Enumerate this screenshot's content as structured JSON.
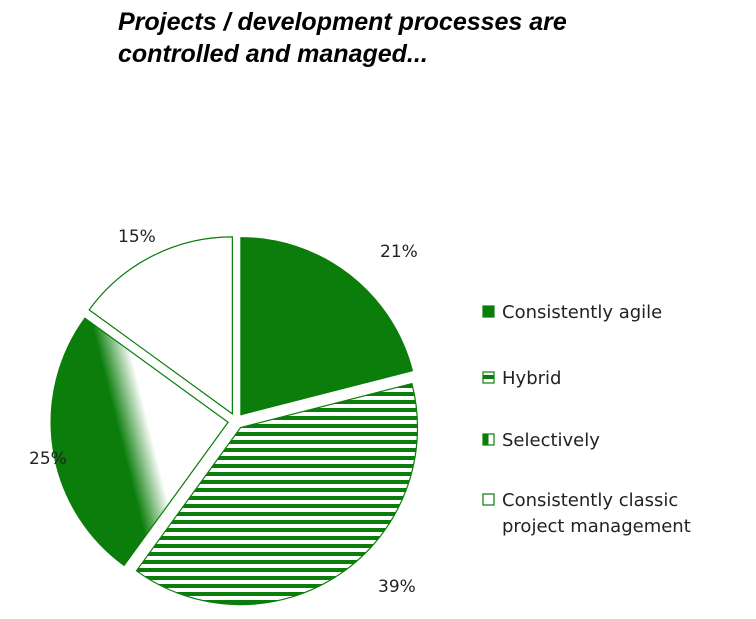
{
  "title": {
    "line1": "Projects / development processes are",
    "line2": "controlled and managed..."
  },
  "colors": {
    "green": "#0a7d0a",
    "outline": "#0a7d0a",
    "background": "#ffffff"
  },
  "chart_data": {
    "type": "pie",
    "title": "Projects / development processes are controlled and managed...",
    "legend_position": "right",
    "series": [
      {
        "name": "Consistently agile",
        "value": 21,
        "label": "21%",
        "pattern": "solid"
      },
      {
        "name": "Hybrid",
        "value": 39,
        "label": "39%",
        "pattern": "horizontal-stripes"
      },
      {
        "name": "Selectively",
        "value": 25,
        "label": "25%",
        "pattern": "gradient"
      },
      {
        "name": "Consistently classic project management",
        "value": 15,
        "label": "15%",
        "pattern": "empty"
      }
    ],
    "legend": [
      {
        "lines": [
          "Consistently agile"
        ]
      },
      {
        "lines": [
          "Hybrid"
        ]
      },
      {
        "lines": [
          "Selectively"
        ]
      },
      {
        "lines": [
          "Consistently classic",
          "project management"
        ]
      }
    ]
  }
}
